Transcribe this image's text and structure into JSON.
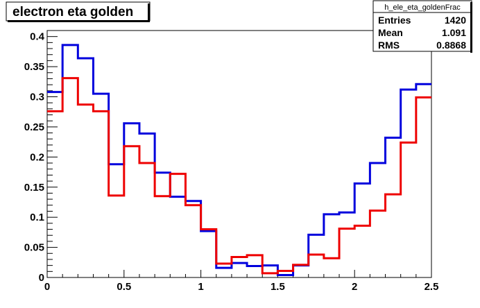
{
  "chart_data": {
    "type": "line",
    "title": "electron eta golden",
    "xlabel": "",
    "ylabel": "",
    "xlim": [
      0,
      2.5
    ],
    "ylim": [
      0,
      0.41
    ],
    "x_ticks": [
      "0",
      "0.5",
      "1",
      "1.5",
      "2",
      "2.5"
    ],
    "y_ticks": [
      "0",
      "0.05",
      "0.1",
      "0.15",
      "0.2",
      "0.25",
      "0.3",
      "0.35",
      "0.4"
    ],
    "bin_edges": [
      0,
      0.1,
      0.2,
      0.3,
      0.4,
      0.5,
      0.6,
      0.7,
      0.8,
      0.9,
      1.0,
      1.1,
      1.2,
      1.3,
      1.4,
      1.5,
      1.6,
      1.7,
      1.8,
      1.9,
      2.0,
      2.1,
      2.2,
      2.3,
      2.4,
      2.5
    ],
    "series": [
      {
        "color": "#0000dd",
        "values": [
          0.308,
          0.386,
          0.364,
          0.305,
          0.188,
          0.256,
          0.239,
          0.174,
          0.134,
          0.127,
          0.077,
          0.016,
          0.024,
          0.019,
          0.02,
          0.004,
          0.02,
          0.071,
          0.105,
          0.108,
          0.156,
          0.19,
          0.232,
          0.312,
          0.321
        ]
      },
      {
        "color": "#ee0000",
        "values": [
          0.276,
          0.331,
          0.287,
          0.276,
          0.136,
          0.218,
          0.19,
          0.135,
          0.172,
          0.12,
          0.08,
          0.023,
          0.034,
          0.037,
          0.007,
          0.011,
          0.021,
          0.038,
          0.032,
          0.081,
          0.086,
          0.111,
          0.138,
          0.224,
          0.299
        ]
      }
    ],
    "stats_box": {
      "name": "h_ele_eta_goldenFrac",
      "rows": [
        {
          "label": "Entries",
          "value": "1420"
        },
        {
          "label": "Mean",
          "value": "1.091"
        },
        {
          "label": "RMS",
          "value": "0.8868"
        }
      ]
    },
    "grid": false
  }
}
